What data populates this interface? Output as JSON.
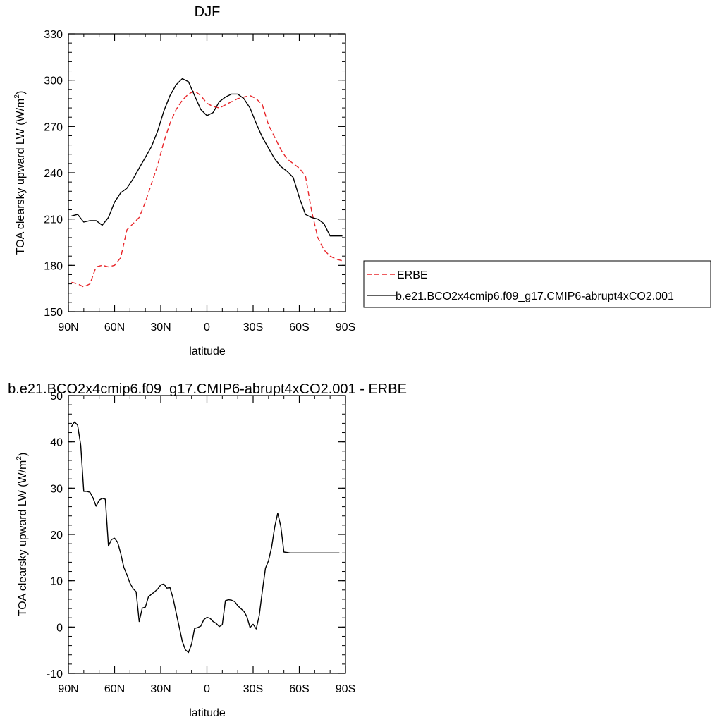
{
  "chart_data": [
    {
      "type": "line",
      "title": "DJF",
      "xlabel": "latitude",
      "ylabel": "TOA clearsky upward LW (W/m",
      "ylabel_sup": "2",
      "ylabel_close": ")",
      "x_range": [
        90,
        -90
      ],
      "xtick_values": [
        90,
        60,
        30,
        0,
        -30,
        -60,
        -90
      ],
      "xtick_labels": [
        "90N",
        "60N",
        "30N",
        "0",
        "30S",
        "60S",
        "90S"
      ],
      "ylim": [
        150,
        330
      ],
      "ytick_labels": [
        "150",
        "180",
        "210",
        "240",
        "270",
        "300",
        "330"
      ],
      "yminor_step": 6,
      "xminor_step": 10,
      "grid": false,
      "legend_position": "right",
      "series": [
        {
          "name": "ERBE",
          "color": "#e8262a",
          "dash": "dashed",
          "x": [
            88,
            84,
            80,
            76,
            72,
            68,
            64,
            60,
            56,
            52,
            48,
            44,
            40,
            36,
            32,
            28,
            24,
            20,
            16,
            12,
            8,
            4,
            0,
            -4,
            -8,
            -12,
            -16,
            -20,
            -24,
            -28,
            -32,
            -36,
            -40,
            -44,
            -48,
            -52,
            -56,
            -60,
            -64,
            -68,
            -72,
            -76,
            -80,
            -84,
            -88
          ],
          "y": [
            169,
            168,
            166,
            168,
            179,
            180,
            179,
            180,
            185,
            203,
            207,
            211,
            221,
            233,
            245,
            260,
            272,
            281,
            287,
            291,
            293,
            290,
            285,
            283,
            282,
            284,
            286,
            288,
            289,
            290,
            288,
            284,
            271,
            263,
            255,
            249,
            246,
            243,
            238,
            215,
            198,
            190,
            186,
            184,
            183
          ]
        },
        {
          "name": "b.e21.BCO2x4cmip6.f09_g17.CMIP6-abrupt4xCO2.001",
          "color": "#000000",
          "dash": "solid",
          "x": [
            88,
            84,
            80,
            76,
            72,
            68,
            64,
            60,
            56,
            52,
            48,
            44,
            40,
            36,
            32,
            28,
            24,
            20,
            16,
            12,
            8,
            4,
            0,
            -4,
            -8,
            -12,
            -16,
            -20,
            -24,
            -28,
            -32,
            -36,
            -40,
            -44,
            -48,
            -52,
            -56,
            -60,
            -64,
            -68,
            -72,
            -76,
            -80,
            -84,
            -88
          ],
          "y": [
            212,
            213,
            208,
            209,
            209,
            206,
            211,
            221,
            227,
            230,
            236,
            243,
            250,
            257,
            267,
            280,
            290,
            297,
            301,
            299,
            290,
            281,
            277,
            279,
            286,
            289,
            291,
            291,
            288,
            282,
            272,
            263,
            256,
            249,
            244,
            241,
            237,
            224,
            213,
            211,
            210,
            207,
            199,
            199,
            199
          ]
        }
      ]
    },
    {
      "type": "line",
      "title": "b.e21.BCO2x4cmip6.f09_g17.CMIP6-abrupt4xCO2.001 - ERBE",
      "xlabel": "latitude",
      "ylabel": "TOA clearsky upward LW (W/m",
      "ylabel_sup": "2",
      "ylabel_close": ")",
      "x_range": [
        90,
        -90
      ],
      "xtick_values": [
        90,
        60,
        30,
        0,
        -30,
        -60,
        -90
      ],
      "xtick_labels": [
        "90N",
        "60N",
        "30N",
        "0",
        "30S",
        "60S",
        "90S"
      ],
      "ylim": [
        -10,
        50
      ],
      "ytick_labels": [
        "-10",
        "0",
        "10",
        "20",
        "30",
        "40",
        "50"
      ],
      "yminor_step": 2,
      "xminor_step": 10,
      "grid": false,
      "series": [
        {
          "name": "",
          "color": "#000000",
          "dash": "solid",
          "x": [
            88,
            86,
            84,
            82,
            80,
            78,
            76,
            74,
            72,
            70,
            68,
            66,
            64,
            62,
            60,
            58,
            56,
            54,
            52,
            50,
            48,
            46,
            44,
            42,
            40,
            38,
            36,
            34,
            32,
            30,
            28,
            26,
            24,
            22,
            20,
            18,
            16,
            14,
            12,
            10,
            8,
            6,
            4,
            2,
            0,
            -2,
            -4,
            -6,
            -8,
            -10,
            -12,
            -14,
            -16,
            -18,
            -20,
            -22,
            -24,
            -26,
            -28,
            -30,
            -32,
            -34,
            -36,
            -38,
            -40,
            -42,
            -44,
            -46,
            -48,
            -50,
            -52,
            -54,
            -56,
            -58,
            -60,
            -62,
            -64,
            -66,
            -68,
            -70,
            -72,
            -74,
            -76,
            -78,
            -80,
            -82,
            -84,
            -86,
            -88
          ],
          "y": [
            43.3,
            44.3,
            43.6,
            39.3,
            29.3,
            29.3,
            29.1,
            27.9,
            26.1,
            27.4,
            27.8,
            27.6,
            17.5,
            18.9,
            19.2,
            18.3,
            15.9,
            12.9,
            11.3,
            9.5,
            8.3,
            7.6,
            1.2,
            4.1,
            4.3,
            6.5,
            7.1,
            7.6,
            8.2,
            9.1,
            9.3,
            8.4,
            8.5,
            6.2,
            3.1,
            0.0,
            -3.1,
            -4.9,
            -5.5,
            -3.7,
            -0.3,
            -0.1,
            0.2,
            1.6,
            2.1,
            1.9,
            1.2,
            0.8,
            0.1,
            0.5,
            5.7,
            5.9,
            5.8,
            5.5,
            4.6,
            4.0,
            3.4,
            2.2,
            -0.1,
            0.6,
            -0.4,
            2.5,
            7.8,
            12.7,
            14.3,
            17.2,
            21.6,
            24.6,
            21.7,
            16.2,
            16.1,
            16.0,
            16.0,
            16.0,
            16.0,
            16.0,
            16.0,
            16.0,
            16.0,
            16.0,
            16.0,
            16.0,
            16.0,
            16.0,
            16.0,
            16.0,
            16.0,
            16.0,
            16.0
          ]
        }
      ]
    }
  ]
}
